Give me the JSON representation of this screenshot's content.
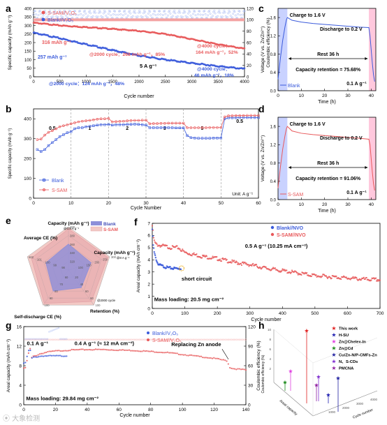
{
  "panel_labels": {
    "a": "a",
    "b": "b",
    "c": "c",
    "d": "d",
    "e": "e",
    "f": "f",
    "g": "g",
    "h": "h"
  },
  "watermark": "⦿ 大象检测",
  "colors": {
    "blank": "#3b5bdb",
    "ssam": "#e8595b",
    "ssam_light": "#f4a3a3",
    "blank_light": "#9fb3f2",
    "shade_blue": "#c9d2ff",
    "shade_pink": "#ffc8dd"
  },
  "chart_data": [
    {
      "id": "a",
      "type": "scatter",
      "xlabel": "Cycle number",
      "ylabel": "Specific capacity (mAh g⁻¹)",
      "y2label": "Coulombic efficiency (%)",
      "xlim": [
        0,
        4000
      ],
      "ylim": [
        0,
        400
      ],
      "y2lim": [
        0,
        120
      ],
      "xticks": [
        0,
        500,
        1000,
        1500,
        2000,
        2500,
        3000,
        3500,
        4000
      ],
      "yticks": [
        0,
        50,
        100,
        150,
        200,
        250,
        300,
        350,
        400
      ],
      "y2ticks": [
        0,
        20,
        40,
        60,
        80,
        100,
        120
      ],
      "legend": [
        "S-SAM//V₂O₅",
        "Blank//V₂O₅"
      ],
      "series": [
        {
          "name": "S-SAM//V₂O₅",
          "x": [
            0,
            200,
            500,
            1000,
            1500,
            2000,
            2500,
            3000,
            3500,
            4000
          ],
          "values": [
            316,
            310,
            300,
            290,
            280,
            268,
            250,
            220,
            190,
            164
          ]
        },
        {
          "name": "Blank//V₂O₅",
          "x": [
            0,
            200,
            500,
            1000,
            1500,
            2000,
            2500,
            3000,
            3500,
            4000
          ],
          "values": [
            257,
            245,
            225,
            190,
            155,
            124,
            100,
            80,
            62,
            46
          ]
        }
      ],
      "ce_ssam": 100,
      "ce_blank": 102,
      "annotations": {
        "a1": "316 mAh g⁻¹",
        "a2": "257 mAh g⁻¹",
        "a3": "@2000 cycle：268 mAh g⁻¹，85%",
        "a4": "@4000 cycle：",
        "a5": "164 mAh g⁻¹，52%",
        "a6": "5 A g⁻¹",
        "a7": "@4000 cycle：",
        "a8": "46 mAh g⁻¹，18%",
        "a9": "@2000 cycle：124 mAh g⁻¹，48%"
      }
    },
    {
      "id": "b",
      "type": "line",
      "xlabel": "Cycle Number",
      "ylabel": "Specific capacity (mAh g⁻¹)",
      "xlim": [
        0,
        60
      ],
      "ylim": [
        0,
        450
      ],
      "xticks": [
        0,
        10,
        20,
        30,
        40,
        50,
        60
      ],
      "yticks": [
        0,
        100,
        200,
        300,
        400
      ],
      "rate_labels": [
        "0.5",
        "1",
        "2",
        "3",
        "5",
        "0.5"
      ],
      "unit": "Unit: A g⁻¹",
      "legend": [
        "Blank",
        "S-SAM"
      ],
      "series": [
        {
          "name": "Blank",
          "x": [
            1,
            2,
            3,
            4,
            5,
            6,
            7,
            8,
            9,
            10,
            11,
            12,
            13,
            14,
            15,
            16,
            17,
            18,
            19,
            20,
            21,
            22,
            23,
            24,
            25,
            26,
            27,
            28,
            29,
            30,
            31,
            32,
            33,
            34,
            35,
            36,
            37,
            38,
            39,
            40,
            41,
            42,
            43,
            44,
            45,
            46,
            47,
            48,
            49,
            50,
            51,
            52,
            53,
            54,
            55,
            56,
            57,
            58,
            59,
            60
          ],
          "values": [
            245,
            235,
            245,
            265,
            280,
            295,
            310,
            320,
            330,
            335,
            350,
            355,
            355,
            360,
            362,
            365,
            368,
            370,
            370,
            372,
            368,
            370,
            370,
            370,
            372,
            372,
            373,
            372,
            370,
            368,
            355,
            355,
            355,
            355,
            356,
            355,
            355,
            354,
            354,
            354,
            315,
            305,
            303,
            302,
            302,
            302,
            302,
            303,
            303,
            303,
            400,
            405,
            405,
            405,
            406,
            406,
            406,
            406,
            406,
            406
          ]
        },
        {
          "name": "S-SAM",
          "x": [
            1,
            2,
            3,
            4,
            5,
            6,
            7,
            8,
            9,
            10,
            11,
            12,
            13,
            14,
            15,
            16,
            17,
            18,
            19,
            20,
            21,
            22,
            23,
            24,
            25,
            26,
            27,
            28,
            29,
            30,
            31,
            32,
            33,
            34,
            35,
            36,
            37,
            38,
            39,
            40,
            41,
            42,
            43,
            44,
            45,
            46,
            47,
            48,
            49,
            50,
            51,
            52,
            53,
            54,
            55,
            56,
            57,
            58,
            59,
            60
          ],
          "values": [
            295,
            298,
            318,
            332,
            340,
            350,
            360,
            365,
            370,
            375,
            380,
            385,
            388,
            390,
            392,
            395,
            398,
            400,
            400,
            402,
            385,
            386,
            387,
            388,
            390,
            391,
            392,
            392,
            393,
            393,
            375,
            376,
            376,
            377,
            377,
            378,
            378,
            378,
            378,
            378,
            355,
            355,
            355,
            355,
            355,
            355,
            356,
            356,
            356,
            356,
            410,
            415,
            415,
            416,
            416,
            416,
            417,
            417,
            417,
            417
          ]
        }
      ]
    },
    {
      "id": "c",
      "type": "line",
      "xlabel": "Time (h)",
      "ylabel": "Voltage (V vs. Zn/Zn²⁺)",
      "xlim": [
        0,
        42
      ],
      "ylim": [
        0,
        1.8
      ],
      "xticks": [
        0,
        10,
        20,
        30,
        40
      ],
      "yticks": [
        0.0,
        0.4,
        0.8,
        1.2,
        1.6
      ],
      "labels": {
        "t1": "Charge to 1.6 V",
        "t2": "Discharge to 0.2 V",
        "t3": "Rest 36 h",
        "t4": "Capacity retention = 75.68%",
        "t5": "0.1 A g⁻¹",
        "t6": "Blank"
      },
      "series": [
        {
          "name": "Blank",
          "x": [
            0,
            1,
            2,
            3,
            3.6,
            4,
            6,
            10,
            15,
            20,
            25,
            30,
            35,
            39,
            39.5,
            40,
            40.5,
            41,
            41.5
          ],
          "values": [
            0.25,
            0.7,
            1.1,
            1.4,
            1.55,
            1.6,
            1.54,
            1.5,
            1.47,
            1.45,
            1.43,
            1.41,
            1.39,
            1.38,
            1.2,
            0.9,
            0.6,
            0.35,
            0.2
          ]
        }
      ]
    },
    {
      "id": "d",
      "type": "line",
      "xlabel": "Time (h)",
      "ylabel": "Voltage (V vs. Zn/Zn²⁺)",
      "xlim": [
        0,
        42
      ],
      "ylim": [
        0,
        1.8
      ],
      "xticks": [
        0,
        10,
        20,
        30,
        40
      ],
      "yticks": [
        0.0,
        0.4,
        0.8,
        1.2,
        1.6
      ],
      "labels": {
        "t1": "Charge to 1.6 V",
        "t2": "Discharge to 0.2 V",
        "t3": "Rest 36 h",
        "t4": "Capacity retention = 91.06%",
        "t5": "0.1 A g⁻¹",
        "t6": "S-SAM"
      },
      "series": [
        {
          "name": "S-SAM",
          "x": [
            0,
            1,
            2,
            3,
            3.6,
            4,
            6,
            10,
            15,
            20,
            25,
            30,
            35,
            39,
            39.5,
            40,
            40.5,
            41,
            41.5
          ],
          "values": [
            0.25,
            0.7,
            1.1,
            1.4,
            1.55,
            1.6,
            1.5,
            1.45,
            1.42,
            1.4,
            1.38,
            1.36,
            1.34,
            1.32,
            1.2,
            0.9,
            0.6,
            0.35,
            0.2
          ]
        }
      ]
    },
    {
      "id": "e",
      "type": "radar",
      "axes": [
        "Capacity (mAh g⁻¹)",
        "Capacity (mAh g⁻¹)",
        "Retention (%)",
        "Self-discharge CE (%)",
        "Average CE (%)"
      ],
      "axis_notes": [
        "@0.5 A g⁻¹",
        "@8 A g⁻¹",
        "@2000 cycle",
        "",
        ""
      ],
      "legend": [
        "Blank",
        "S-SAM"
      ],
      "ring_labels": [
        [
          "400",
          "380",
          "360",
          "340",
          "320"
        ],
        [
          "300",
          "250",
          "200",
          "150",
          "100"
        ],
        [
          "100",
          "80",
          "60",
          "40",
          "20"
        ],
        [
          "100",
          "90",
          "80",
          "70",
          "60"
        ],
        [
          "102",
          "101",
          "100",
          "99",
          "98"
        ]
      ],
      "series": [
        {
          "name": "Blank",
          "values": [
            0.6,
            0.55,
            0.5,
            0.6,
            0.55
          ]
        },
        {
          "name": "S-SAM",
          "values": [
            0.95,
            0.95,
            0.9,
            0.95,
            0.9
          ]
        }
      ]
    },
    {
      "id": "f",
      "type": "scatter",
      "xlabel": "Cycle number",
      "ylabel": "Areal capacity (mAh cm⁻²)",
      "xlim": [
        0,
        700
      ],
      "ylim": [
        0,
        7
      ],
      "xticks": [
        0,
        100,
        200,
        300,
        400,
        500,
        600,
        700
      ],
      "yticks": [
        0,
        1,
        2,
        3,
        4,
        5,
        6,
        7
      ],
      "legend": [
        "Blank//NVO",
        "S-SAM//NVO"
      ],
      "labels": {
        "t1": "0.5 A g⁻¹ (10.25 mA cm⁻²)",
        "t2": "short circuit",
        "t3": "Mass loading: 20.5 mg cm⁻²"
      },
      "series": [
        {
          "name": "Blank//NVO",
          "x": [
            0,
            3,
            6,
            10,
            15,
            20,
            30,
            40,
            50,
            60,
            70,
            80,
            88
          ],
          "values": [
            6.5,
            5.2,
            4.6,
            4.2,
            3.8,
            3.6,
            3.5,
            3.4,
            3.35,
            3.3,
            3.3,
            3.3,
            3.3
          ]
        },
        {
          "name": "S-SAM//NVO",
          "x": [
            0,
            5,
            10,
            20,
            40,
            60,
            80,
            100,
            150,
            200,
            250,
            300,
            350,
            400,
            450,
            500,
            550,
            600,
            650,
            700
          ],
          "values": [
            6.8,
            5.6,
            5.3,
            5.2,
            5.1,
            5.0,
            5.0,
            4.6,
            4.3,
            4.1,
            3.8,
            3.6,
            3.3,
            3.1,
            2.9,
            2.7,
            2.6,
            2.5,
            2.4,
            2.35
          ]
        }
      ]
    },
    {
      "id": "g",
      "type": "scatter",
      "xlabel": "Cycle number",
      "ylabel": "Areal capacity (mAh cm⁻²)",
      "y2label": "Coulombic efficiency (%)",
      "xlim": [
        0,
        140
      ],
      "ylim": [
        0,
        16
      ],
      "y2lim": [
        0,
        120
      ],
      "xticks": [
        0,
        20,
        40,
        60,
        80,
        100,
        120,
        140
      ],
      "yticks": [
        0,
        4,
        8,
        12,
        16
      ],
      "y2ticks": [
        0,
        30,
        60,
        90,
        120
      ],
      "legend": [
        "Blank//V₂O₅",
        "S-SAM//V₂O₅"
      ],
      "labels": {
        "t1": "0.1 A g⁻¹",
        "t2": "0.4 A g⁻¹ (≈ 12 mA cm⁻²)",
        "t3": "Replacing Zn anode",
        "t4": "Mass loading: 29.84 mg cm⁻²"
      },
      "series": [
        {
          "name": "Blank//V₂O₅",
          "x": [
            1,
            2,
            3,
            4,
            5,
            6,
            8,
            10,
            12,
            15,
            18,
            20,
            22,
            25,
            27
          ],
          "values": [
            8.5,
            9.8,
            11,
            11.4,
            9.5,
            9.7,
            9.8,
            9.9,
            10,
            10,
            10,
            10,
            10,
            10,
            10
          ]
        },
        {
          "name": "S-SAM//V₂O₅",
          "x": [
            1,
            2,
            3,
            4,
            5,
            6,
            8,
            10,
            15,
            20,
            30,
            40,
            50,
            60,
            70,
            80,
            90,
            100,
            110,
            120,
            125,
            128,
            130,
            132,
            135,
            138,
            140
          ],
          "values": [
            7.5,
            9,
            10.5,
            11.5,
            9.6,
            9.9,
            10.1,
            10.4,
            10.8,
            11.0,
            11.2,
            11.3,
            11.3,
            11.2,
            11.1,
            10.9,
            10.7,
            10.3,
            9.9,
            9.5,
            9.2,
            9.0,
            7.6,
            7.4,
            7.3,
            7.2,
            7.1
          ]
        }
      ],
      "ce_ssam": 100,
      "ce_blank": 101
    },
    {
      "id": "h",
      "type": "bar3d",
      "zlabel": "Coulombic efficiency (%)",
      "ylabel": "Cycle number",
      "xlabel": "Areal capacity",
      "legend": [
        "This work",
        "H-SU",
        "Zn@Chelex-In",
        "Zn@Cd",
        "Cu/Zn-N/P-CMFs-Zn",
        "N、S-CDs",
        "PMCNA"
      ],
      "legend_colors": [
        "#e02020",
        "#1f1fb0",
        "#e040e0",
        "#1b8a1b",
        "#2020a0",
        "#8030d0",
        "#9020a0"
      ],
      "ticks": [
        "10",
        "8",
        "6",
        "4",
        "2"
      ],
      "cycle_ticks": [
        "4000",
        "3000",
        "2000",
        "1000"
      ]
    }
  ]
}
